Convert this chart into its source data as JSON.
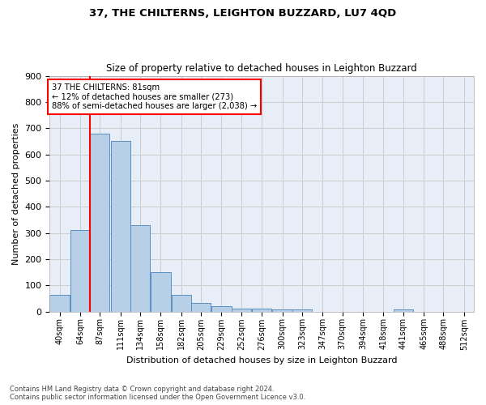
{
  "title": "37, THE CHILTERNS, LEIGHTON BUZZARD, LU7 4QD",
  "subtitle": "Size of property relative to detached houses in Leighton Buzzard",
  "xlabel": "Distribution of detached houses by size in Leighton Buzzard",
  "ylabel": "Number of detached properties",
  "footnote": "Contains HM Land Registry data © Crown copyright and database right 2024.\nContains public sector information licensed under the Open Government Licence v3.0.",
  "bar_labels": [
    "40sqm",
    "64sqm",
    "87sqm",
    "111sqm",
    "134sqm",
    "158sqm",
    "182sqm",
    "205sqm",
    "229sqm",
    "252sqm",
    "276sqm",
    "300sqm",
    "323sqm",
    "347sqm",
    "370sqm",
    "394sqm",
    "418sqm",
    "441sqm",
    "465sqm",
    "488sqm",
    "512sqm"
  ],
  "bar_heights": [
    63,
    310,
    680,
    650,
    330,
    150,
    65,
    33,
    20,
    12,
    12,
    8,
    8,
    0,
    0,
    0,
    0,
    8,
    0,
    0,
    0
  ],
  "bar_color": "#b8cfe8",
  "bar_edge_color": "#5a8fc0",
  "ylim": [
    0,
    900
  ],
  "yticks": [
    0,
    100,
    200,
    300,
    400,
    500,
    600,
    700,
    800,
    900
  ],
  "bin_starts": [
    40,
    64,
    87,
    111,
    134,
    158,
    182,
    205,
    229,
    252,
    276,
    300,
    323,
    347,
    370,
    394,
    418,
    441,
    465,
    488,
    512
  ],
  "bin_width": 23,
  "vline_x": 87,
  "annotation_text": "37 THE CHILTERNS: 81sqm\n← 12% of detached houses are smaller (273)\n88% of semi-detached houses are larger (2,038) →",
  "grid_color": "#cccccc",
  "bg_color": "#e8eef8"
}
